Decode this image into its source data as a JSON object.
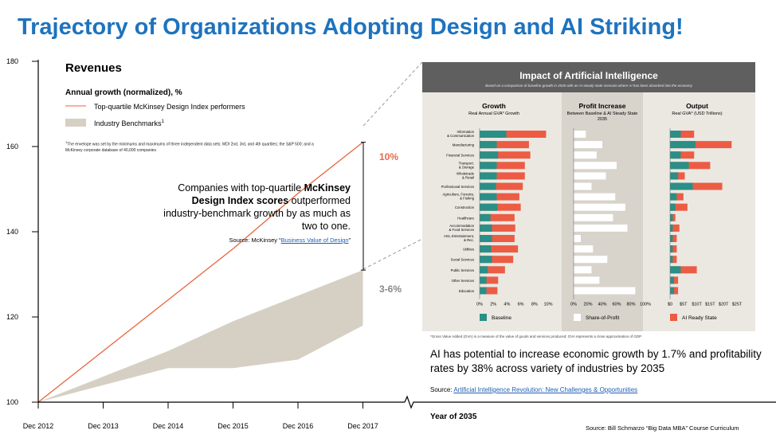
{
  "title": "Trajectory of Organizations Adopting Design and AI Striking!",
  "left_chart": {
    "heading": "Revenues",
    "subheading": "Annual growth (normalized), %",
    "legend_line": "Top-quartile McKinsey Design Index performers",
    "legend_band": "Industry Benchmarks",
    "legend_band_sup": "1",
    "footnote": "The envelope was set by the minimums and maximums of three independent data sets: MDI 2nd, 3rd, and 4th quartiles; the S&P 500; and a McKinsey corporate database of 40,000 companies",
    "footnote_sup": "1",
    "callout_pre": "Companies with top-quartile ",
    "callout_bold": "McKinsey Design Index scores",
    "callout_post": " outperformed industry-benchmark growth by as much as two to one.",
    "source_label": "Source: McKinsey “",
    "source_link": "Business Value of Design",
    "source_end": "”",
    "gap_top_label": "10%",
    "gap_band_label": "3-6%",
    "ai_text": "AI has potential to increase economic growth by 1.7% and profitability rates by 38% across variety of industries by 2035",
    "source2_label": "Source: ",
    "source2_link": "Artificial Intelligence Revolution: New Challenges & Opportunities",
    "year_label": "Year of 2035",
    "source3": "Source: Bill Schmarzo “Big Data MBA” Course Curriculum",
    "colors": {
      "line": "#e8643c",
      "band": "#d6d0c4",
      "title": "#1e73be"
    }
  },
  "chart_data": [
    {
      "type": "line",
      "x": [
        "Dec 2012",
        "Dec 2013",
        "Dec 2014",
        "Dec 2015",
        "Dec 2016",
        "Dec 2017"
      ],
      "ylim": [
        100,
        180
      ],
      "yticks": [
        "180",
        "160",
        "140",
        "120",
        "100"
      ],
      "series": [
        {
          "name": "Top-quartile McKinsey Design Index performers",
          "values": [
            100,
            112,
            124,
            136,
            149,
            161
          ]
        }
      ],
      "band": {
        "name": "Industry Benchmarks",
        "upper": [
          100,
          106,
          112,
          119,
          125,
          131
        ],
        "lower": [
          100,
          104,
          108,
          108,
          110,
          118
        ]
      }
    },
    {
      "type": "bar",
      "title": "Impact of Artificial Intelligence",
      "subtitle": "Based on a comparison of baseline growth in 2035 with an AI steady state scenario where AI has been absorbed into the economy",
      "categories": [
        "Information & Communication",
        "Manufacturing",
        "Financial Services",
        "Transport. & Storage",
        "Wholetrade & Retail",
        "Professional Services",
        "Agriculture, Forestry, & Fishing",
        "Construction",
        "Healthcare",
        "Accommodation & Food Services",
        "Arts, Entertainment, & Rec.",
        "Utilities",
        "Social Services",
        "Public Services",
        "Other Services",
        "Education"
      ],
      "panels": [
        {
          "title": "Growth",
          "subtitle": "Real Annual GVA* Growth",
          "xticks": [
            "0%",
            "2%",
            "4%",
            "6%",
            "8%",
            "10%"
          ],
          "xlim": [
            0,
            10
          ],
          "series": [
            {
              "name": "Baseline",
              "values": [
                3.9,
                2.5,
                2.7,
                2.5,
                2.5,
                2.4,
                2.5,
                2.6,
                1.6,
                1.8,
                1.8,
                1.7,
                1.8,
                1.2,
                1.0,
                1.0
              ]
            },
            {
              "name": "AI Ready State",
              "values": [
                9.7,
                7.2,
                7.4,
                6.6,
                6.6,
                6.3,
                5.8,
                6.0,
                5.1,
                5.2,
                5.1,
                5.6,
                4.9,
                3.7,
                2.7,
                2.6
              ]
            }
          ]
        },
        {
          "title": "Profit Increase",
          "subtitle": "Between Baseline & AI Steady State 2035",
          "xticks": [
            "0%",
            "20%",
            "40%",
            "60%",
            "80%",
            "100%"
          ],
          "xlim": [
            0,
            100
          ],
          "series": [
            {
              "name": "Share-of-Profit",
              "values": [
                17,
                40,
                32,
                60,
                45,
                25,
                58,
                72,
                55,
                75,
                10,
                27,
                47,
                25,
                36,
                86
              ]
            }
          ]
        },
        {
          "title": "Output",
          "subtitle": "Real GVA* (USD Trillions)",
          "xticks": [
            "$0",
            "$5T",
            "$10T",
            "$15T",
            "$20T",
            "$25T"
          ],
          "xlim": [
            0,
            25
          ],
          "series": [
            {
              "name": "Baseline",
              "values": [
                4.0,
                9.5,
                4.0,
                7.0,
                3.0,
                8.5,
                2.5,
                2.0,
                1.0,
                1.0,
                1.0,
                1.0,
                1.0,
                4.0,
                1.5,
                1.5
              ]
            },
            {
              "name": "AI Ready State",
              "values": [
                9.0,
                23.0,
                9.0,
                15.0,
                5.5,
                19.5,
                5.0,
                6.5,
                2.0,
                3.5,
                2.5,
                2.5,
                2.5,
                10.0,
                3.0,
                3.0
              ]
            }
          ]
        }
      ],
      "legend": [
        "Baseline",
        "Share-of-Profit",
        "AI Ready State"
      ],
      "colors": {
        "baseline": "#2a8f86",
        "ai": "#ec5c44",
        "profit": "#ffffff",
        "panel": "#ebe8e2",
        "header": "#5f5f5f"
      },
      "footnote": "*Gross Value Added (GVA) is a measure of the value of goods and services produced; GVA represents a close approximation of GDP"
    }
  ]
}
